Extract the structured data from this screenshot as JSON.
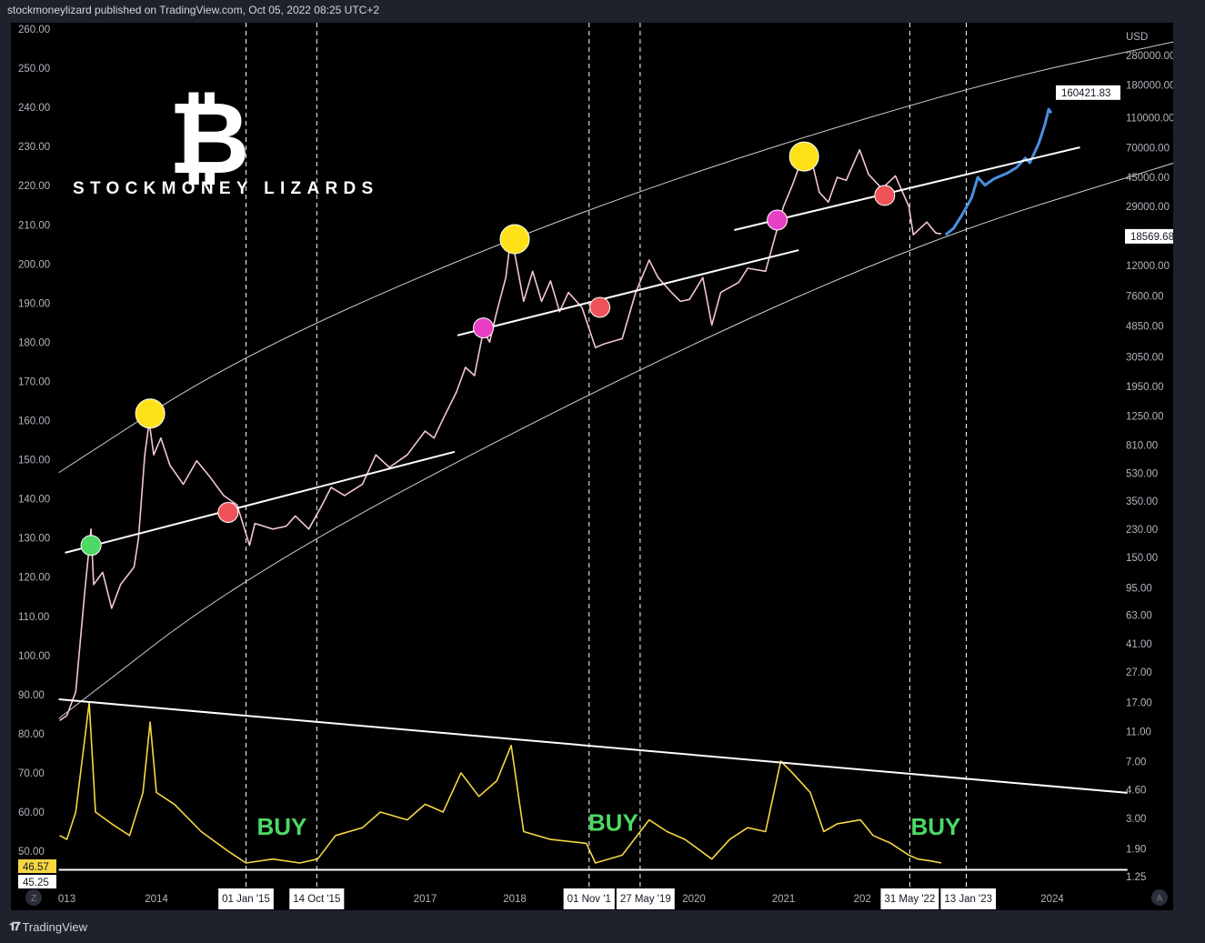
{
  "header": {
    "title": "stockmoneylizard published on TradingView.com, Oct 05, 2022 08:25 UTC+2"
  },
  "footer": {
    "brand": "TradingView",
    "logo_icon": "tradingview-logo-icon"
  },
  "logo": {
    "symbol": "₿",
    "text": "STOCKMONEY  LIZARDS"
  },
  "colors": {
    "background": "#000000",
    "price": "#f3c6d4",
    "forecast": "#4a90e2",
    "indicator": "#f5d742",
    "buy": "#4cd964",
    "lines": "#ffffff",
    "green_dot": "#4cd964",
    "yellow_dot": "#ffe11a",
    "red_dot": "#f0525a",
    "magenta_dot": "#e83fc4"
  },
  "chart_data": {
    "type": "line",
    "currency_label": "USD",
    "right_axis": {
      "scale": "log",
      "range": [
        1.25,
        280000
      ],
      "ticks": [
        "280000.00",
        "180000.00",
        "110000.00",
        "70000.00",
        "45000.00",
        "29000.00",
        "12000.00",
        "7600.00",
        "4850.00",
        "3050.00",
        "1950.00",
        "1250.00",
        "810.00",
        "530.00",
        "350.00",
        "230.00",
        "150.00",
        "95.00",
        "63.00",
        "41.00",
        "27.00",
        "17.00",
        "11.00",
        "7.00",
        "4.60",
        "3.00",
        "1.90",
        "1.25"
      ],
      "price_labels": [
        "160421.83",
        "18569.68"
      ]
    },
    "left_axis": {
      "scale": "linear",
      "range": [
        45,
        260
      ],
      "ticks": [
        "260.00",
        "250.00",
        "240.00",
        "230.00",
        "220.00",
        "210.00",
        "200.00",
        "190.00",
        "180.00",
        "170.00",
        "160.00",
        "150.00",
        "140.00",
        "130.00",
        "120.00",
        "110.00",
        "100.00",
        "90.00",
        "80.00",
        "70.00",
        "60.00",
        "50.00"
      ],
      "value_labels": [
        {
          "text": "46.57",
          "v": 46.57,
          "style": "yellow"
        },
        {
          "text": "45.25",
          "v": 45.25,
          "style": "white"
        }
      ]
    },
    "x_axis": {
      "labels": [
        {
          "label": "013",
          "t": 2013.0,
          "box": false
        },
        {
          "label": "2014",
          "t": 2014.0,
          "box": false
        },
        {
          "label": "01 Jan '15",
          "t": 2015.0,
          "box": true
        },
        {
          "label": "14 Oct '15",
          "t": 2015.79,
          "box": true
        },
        {
          "label": "2017",
          "t": 2017.0,
          "box": false
        },
        {
          "label": "2018",
          "t": 2018.0,
          "box": false
        },
        {
          "label": "01 Nov '1",
          "t": 2018.83,
          "box": true
        },
        {
          "label": "27 May '19",
          "t": 2019.4,
          "box": true
        },
        {
          "label": "2020",
          "t": 2020.0,
          "box": false
        },
        {
          "label": "2021",
          "t": 2021.0,
          "box": false
        },
        {
          "label": "202",
          "t": 2021.88,
          "box": false
        },
        {
          "label": "31 May '22",
          "t": 2022.41,
          "box": true
        },
        {
          "label": "13 Jan '23",
          "t": 2023.04,
          "box": true
        },
        {
          "label": "2024",
          "t": 2024.0,
          "box": false
        }
      ]
    },
    "series": [
      {
        "role": "price",
        "data": [
          [
            2012.92,
            13
          ],
          [
            2013.0,
            14
          ],
          [
            2013.1,
            20
          ],
          [
            2013.2,
            90
          ],
          [
            2013.27,
            230
          ],
          [
            2013.3,
            100
          ],
          [
            2013.4,
            120
          ],
          [
            2013.5,
            70
          ],
          [
            2013.6,
            100
          ],
          [
            2013.75,
            130
          ],
          [
            2013.8,
            200
          ],
          [
            2013.87,
            700
          ],
          [
            2013.92,
            1150
          ],
          [
            2013.97,
            700
          ],
          [
            2014.05,
            900
          ],
          [
            2014.15,
            600
          ],
          [
            2014.3,
            450
          ],
          [
            2014.45,
            640
          ],
          [
            2014.6,
            500
          ],
          [
            2014.75,
            380
          ],
          [
            2014.9,
            330
          ],
          [
            2015.04,
            180
          ],
          [
            2015.1,
            250
          ],
          [
            2015.3,
            230
          ],
          [
            2015.45,
            240
          ],
          [
            2015.55,
            280
          ],
          [
            2015.7,
            230
          ],
          [
            2015.85,
            330
          ],
          [
            2015.95,
            430
          ],
          [
            2016.1,
            380
          ],
          [
            2016.3,
            450
          ],
          [
            2016.45,
            700
          ],
          [
            2016.6,
            580
          ],
          [
            2016.8,
            700
          ],
          [
            2017.0,
            1000
          ],
          [
            2017.1,
            900
          ],
          [
            2017.2,
            1200
          ],
          [
            2017.35,
            1800
          ],
          [
            2017.45,
            2600
          ],
          [
            2017.55,
            2300
          ],
          [
            2017.65,
            4500
          ],
          [
            2017.72,
            3800
          ],
          [
            2017.8,
            6000
          ],
          [
            2017.9,
            10000
          ],
          [
            2017.96,
            19000
          ],
          [
            2018.05,
            10000
          ],
          [
            2018.1,
            7000
          ],
          [
            2018.2,
            11000
          ],
          [
            2018.3,
            7000
          ],
          [
            2018.4,
            9500
          ],
          [
            2018.5,
            6000
          ],
          [
            2018.6,
            8000
          ],
          [
            2018.75,
            6400
          ],
          [
            2018.9,
            3500
          ],
          [
            2019.0,
            3700
          ],
          [
            2019.2,
            4000
          ],
          [
            2019.35,
            8000
          ],
          [
            2019.5,
            13000
          ],
          [
            2019.6,
            10000
          ],
          [
            2019.75,
            8000
          ],
          [
            2019.85,
            7000
          ],
          [
            2019.95,
            7200
          ],
          [
            2020.1,
            10000
          ],
          [
            2020.2,
            4900
          ],
          [
            2020.3,
            8000
          ],
          [
            2020.5,
            9300
          ],
          [
            2020.6,
            11500
          ],
          [
            2020.8,
            11000
          ],
          [
            2020.9,
            18000
          ],
          [
            2021.0,
            29000
          ],
          [
            2021.1,
            40000
          ],
          [
            2021.2,
            58000
          ],
          [
            2021.3,
            63000
          ],
          [
            2021.4,
            36000
          ],
          [
            2021.5,
            31000
          ],
          [
            2021.6,
            45000
          ],
          [
            2021.7,
            43000
          ],
          [
            2021.85,
            68000
          ],
          [
            2021.95,
            47000
          ],
          [
            2022.1,
            38000
          ],
          [
            2022.25,
            46000
          ],
          [
            2022.4,
            29000
          ],
          [
            2022.45,
            19000
          ],
          [
            2022.6,
            23000
          ],
          [
            2022.7,
            19500
          ],
          [
            2022.76,
            19300
          ]
        ]
      },
      {
        "role": "forecast",
        "data": [
          [
            2022.81,
            19000
          ],
          [
            2022.9,
            21000
          ],
          [
            2023.0,
            26000
          ],
          [
            2023.1,
            33000
          ],
          [
            2023.17,
            45000
          ],
          [
            2023.25,
            40000
          ],
          [
            2023.35,
            44000
          ],
          [
            2023.5,
            48000
          ],
          [
            2023.6,
            52000
          ],
          [
            2023.7,
            60000
          ],
          [
            2023.75,
            56000
          ],
          [
            2023.85,
            75000
          ],
          [
            2023.92,
            100000
          ],
          [
            2023.96,
            125000
          ],
          [
            2023.99,
            118000
          ]
        ]
      },
      {
        "role": "indicator",
        "axis": "left",
        "data": [
          [
            2012.92,
            54
          ],
          [
            2013.0,
            53
          ],
          [
            2013.1,
            60
          ],
          [
            2013.25,
            88
          ],
          [
            2013.32,
            60
          ],
          [
            2013.5,
            57
          ],
          [
            2013.7,
            54
          ],
          [
            2013.85,
            65
          ],
          [
            2013.93,
            83
          ],
          [
            2014.0,
            65
          ],
          [
            2014.2,
            62
          ],
          [
            2014.5,
            55
          ],
          [
            2014.8,
            50
          ],
          [
            2015.0,
            47
          ],
          [
            2015.3,
            48
          ],
          [
            2015.6,
            47
          ],
          [
            2015.8,
            48
          ],
          [
            2016.0,
            54
          ],
          [
            2016.3,
            56
          ],
          [
            2016.5,
            60
          ],
          [
            2016.8,
            58
          ],
          [
            2017.0,
            62
          ],
          [
            2017.2,
            60
          ],
          [
            2017.4,
            70
          ],
          [
            2017.6,
            64
          ],
          [
            2017.8,
            68
          ],
          [
            2017.96,
            77
          ],
          [
            2018.1,
            55
          ],
          [
            2018.4,
            53
          ],
          [
            2018.8,
            52
          ],
          [
            2018.9,
            47
          ],
          [
            2019.2,
            49
          ],
          [
            2019.5,
            58
          ],
          [
            2019.7,
            55
          ],
          [
            2019.9,
            53
          ],
          [
            2020.2,
            48
          ],
          [
            2020.4,
            53
          ],
          [
            2020.6,
            56
          ],
          [
            2020.8,
            55
          ],
          [
            2020.97,
            73
          ],
          [
            2021.1,
            70
          ],
          [
            2021.3,
            65
          ],
          [
            2021.45,
            55
          ],
          [
            2021.6,
            57
          ],
          [
            2021.86,
            58
          ],
          [
            2022.0,
            54
          ],
          [
            2022.2,
            52
          ],
          [
            2022.4,
            49
          ],
          [
            2022.5,
            48
          ],
          [
            2022.65,
            47.5
          ],
          [
            2022.76,
            47
          ]
        ]
      }
    ],
    "markers": [
      {
        "t": 2013.27,
        "price": 180,
        "color": "green"
      },
      {
        "t": 2013.93,
        "price": 1300,
        "color": "yellow"
      },
      {
        "t": 2014.8,
        "price": 295,
        "color": "red"
      },
      {
        "t": 2017.65,
        "price": 4700,
        "color": "magenta"
      },
      {
        "t": 2018.0,
        "price": 17800,
        "color": "yellow"
      },
      {
        "t": 2018.95,
        "price": 6400,
        "color": "red"
      },
      {
        "t": 2020.93,
        "price": 23700,
        "color": "magenta"
      },
      {
        "t": 2021.23,
        "price": 61500,
        "color": "yellow"
      },
      {
        "t": 2022.13,
        "price": 34300,
        "color": "red"
      }
    ],
    "envelope_upper": [
      [
        2012.91,
        536
      ],
      [
        2015.02,
        3365
      ],
      [
        2018.85,
        29900
      ],
      [
        2023.04,
        176000
      ],
      [
        2025.4,
        348000
      ]
    ],
    "envelope_lower": [
      [
        2012.91,
        13.4
      ],
      [
        2015.02,
        119
      ],
      [
        2018.85,
        1820
      ],
      [
        2022.4,
        16200
      ],
      [
        2025.4,
        56800
      ]
    ],
    "trendlines_price": [
      [
        [
          2012.98,
          161
        ],
        [
          2017.33,
          733
        ]
      ],
      [
        [
          2017.36,
          4200
        ],
        [
          2021.17,
          15100
        ]
      ],
      [
        [
          2020.45,
          20400
        ],
        [
          2024.31,
          70600
        ]
      ]
    ],
    "trendlines_indicator": [
      [
        [
          2012.91,
          88.8
        ],
        [
          2024.84,
          64.9
        ]
      ],
      [
        [
          2012.91,
          45.25
        ],
        [
          2024.84,
          45.25
        ]
      ]
    ],
    "vertical_dates": [
      2015.0,
      2015.79,
      2018.83,
      2019.4,
      2022.41,
      2023.04
    ],
    "annotations": [
      {
        "text": "BUY",
        "t": 2015.4,
        "v": 54.2
      },
      {
        "text": "BUY",
        "t": 2019.1,
        "v": 55.2
      },
      {
        "text": "BUY",
        "t": 2022.7,
        "v": 54.2
      }
    ]
  }
}
